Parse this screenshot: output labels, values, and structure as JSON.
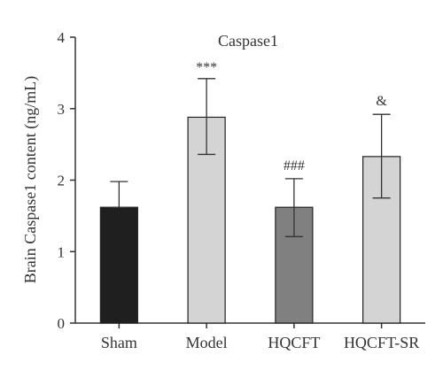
{
  "chart_data": {
    "type": "bar",
    "title": "Caspase1",
    "ylabel": "Brain Caspase1 content (ng/mL)",
    "xlabel": "",
    "ylim": [
      0,
      4
    ],
    "yticks": [
      0,
      1,
      2,
      3,
      4
    ],
    "categories": [
      "Sham",
      "Model",
      "HQCFT",
      "HQCFT-SR"
    ],
    "values": [
      1.62,
      2.88,
      1.62,
      2.33
    ],
    "error_lower": [
      1.62,
      2.36,
      1.21,
      1.75
    ],
    "error_upper": [
      1.98,
      3.42,
      2.02,
      2.92
    ],
    "annotations": [
      "",
      "***",
      "###",
      "&"
    ],
    "colors": [
      "#1f1f1f",
      "#d4d4d4",
      "#808080",
      "#d4d4d4"
    ],
    "grid": false,
    "legend": "none"
  }
}
